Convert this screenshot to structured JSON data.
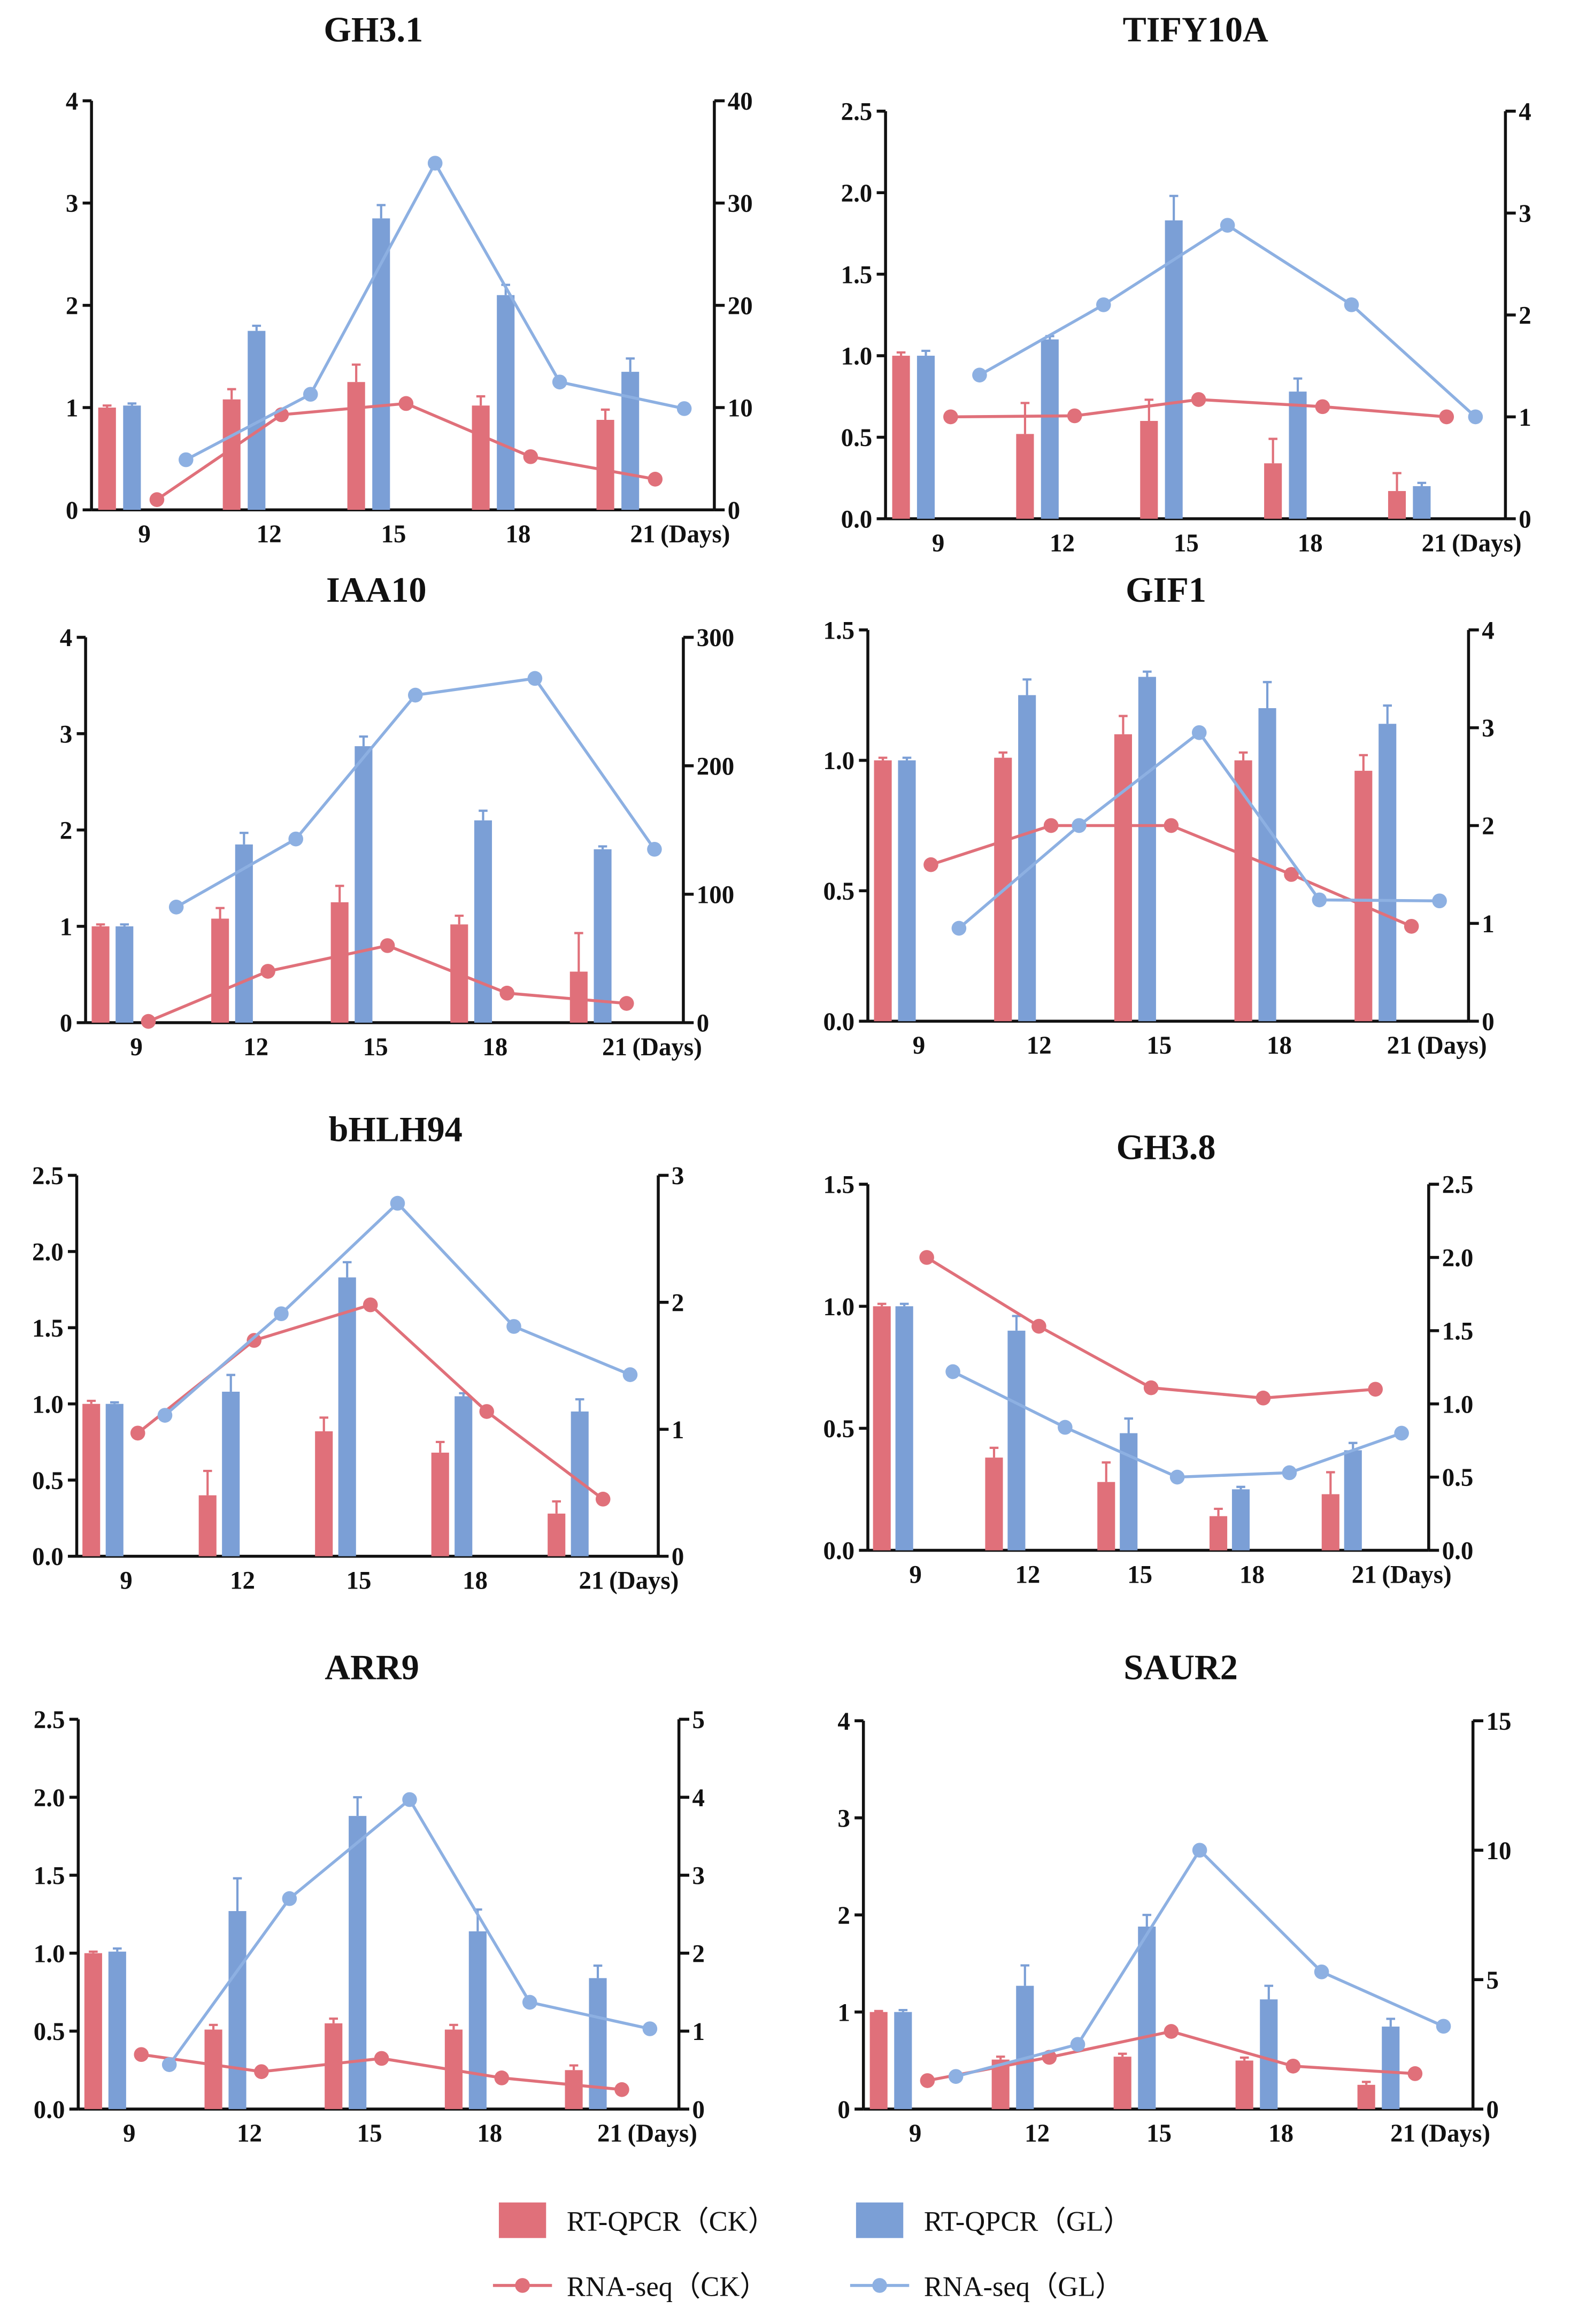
{
  "colors": {
    "ck": "#e0707a",
    "gl": "#7b9fd6",
    "gl_line": "#8db0e2",
    "axis": "#111111"
  },
  "legend": [
    {
      "label": "RT-QPCR（CK）",
      "kind": "bar",
      "series": "ck"
    },
    {
      "label": "RT-QPCR（GL）",
      "kind": "bar",
      "series": "gl"
    },
    {
      "label": "RNA-seq（CK）",
      "kind": "line",
      "series": "ck"
    },
    {
      "label": "RNA-seq（GL）",
      "kind": "line",
      "series": "gl"
    }
  ],
  "chart_data": [
    {
      "type": "bar+line",
      "title": "GH3.1",
      "categories": [
        "9",
        "12",
        "15",
        "18",
        "21"
      ],
      "xlabel": "(Days)",
      "ylim_left": [
        0,
        4
      ],
      "yticks_left": [
        "0",
        "1",
        "2",
        "3",
        "4"
      ],
      "ylim_right": [
        0,
        40
      ],
      "yticks_right": [
        "0",
        "10",
        "20",
        "30",
        "40"
      ],
      "series": [
        {
          "name": "RT-QPCR（CK）",
          "axis": "left",
          "values": [
            1.0,
            1.08,
            1.25,
            1.02,
            0.88
          ],
          "err": [
            0.02,
            0.1,
            0.17,
            0.09,
            0.1
          ]
        },
        {
          "name": "RT-QPCR（GL）",
          "axis": "left",
          "values": [
            1.02,
            1.75,
            2.85,
            2.1,
            1.35
          ],
          "err": [
            0.02,
            0.05,
            0.13,
            0.1,
            0.13
          ]
        },
        {
          "name": "RNA-seq（CK）",
          "axis": "right",
          "values": [
            1.0,
            9.3,
            10.4,
            5.2,
            3.0
          ]
        },
        {
          "name": "RNA-seq（GL）",
          "axis": "right",
          "values": [
            4.9,
            11.3,
            33.9,
            12.5,
            9.9
          ]
        }
      ]
    },
    {
      "type": "bar+line",
      "title": "TIFY10A",
      "categories": [
        "9",
        "12",
        "15",
        "18",
        "21"
      ],
      "xlabel": "(Days)",
      "ylim_left": [
        0,
        2.5
      ],
      "yticks_left": [
        "0.0",
        "0.5",
        "1.0",
        "1.5",
        "2.0",
        "2.5"
      ],
      "ylim_right": [
        0,
        4
      ],
      "yticks_right": [
        "0",
        "1",
        "2",
        "3",
        "4"
      ],
      "series": [
        {
          "name": "RT-QPCR（CK）",
          "axis": "left",
          "values": [
            1.0,
            0.52,
            0.6,
            0.34,
            0.17
          ],
          "err": [
            0.02,
            0.19,
            0.13,
            0.15,
            0.11
          ]
        },
        {
          "name": "RT-QPCR（GL）",
          "axis": "left",
          "values": [
            1.0,
            1.1,
            1.83,
            0.78,
            0.2
          ],
          "err": [
            0.03,
            0.02,
            0.15,
            0.08,
            0.02
          ]
        },
        {
          "name": "RNA-seq（CK）",
          "axis": "right",
          "values": [
            1.0,
            1.01,
            1.17,
            1.1,
            1.0
          ]
        },
        {
          "name": "RNA-seq（GL）",
          "axis": "right",
          "values": [
            1.41,
            2.1,
            2.88,
            2.1,
            1.0
          ]
        }
      ]
    },
    {
      "type": "bar+line",
      "title": "IAA10",
      "categories": [
        "9",
        "12",
        "15",
        "18",
        "21"
      ],
      "xlabel": "(Days)",
      "ylim_left": [
        0,
        4
      ],
      "yticks_left": [
        "0",
        "1",
        "2",
        "3",
        "4"
      ],
      "ylim_right": [
        0,
        300
      ],
      "yticks_right": [
        "0",
        "100",
        "200",
        "300"
      ],
      "series": [
        {
          "name": "RT-QPCR（CK）",
          "axis": "left",
          "values": [
            1.0,
            1.08,
            1.25,
            1.02,
            0.53
          ],
          "err": [
            0.02,
            0.11,
            0.17,
            0.09,
            0.4
          ]
        },
        {
          "name": "RT-QPCR（GL）",
          "axis": "left",
          "values": [
            1.0,
            1.85,
            2.87,
            2.1,
            1.8
          ],
          "err": [
            0.02,
            0.12,
            0.1,
            0.1,
            0.03
          ]
        },
        {
          "name": "RNA-seq（CK）",
          "axis": "right",
          "values": [
            1,
            40,
            60,
            23,
            15
          ]
        },
        {
          "name": "RNA-seq（GL）",
          "axis": "right",
          "values": [
            90,
            143,
            255,
            268,
            135
          ]
        }
      ]
    },
    {
      "type": "bar+line",
      "title": "GIF1",
      "categories": [
        "9",
        "12",
        "15",
        "18",
        "21"
      ],
      "xlabel": "(Days)",
      "ylim_left": [
        0,
        1.5
      ],
      "yticks_left": [
        "0.0",
        "0.5",
        "1.0",
        "1.5"
      ],
      "ylim_right": [
        0,
        4
      ],
      "yticks_right": [
        "0",
        "1",
        "2",
        "3",
        "4"
      ],
      "series": [
        {
          "name": "RT-QPCR（CK）",
          "axis": "left",
          "values": [
            1.0,
            1.01,
            1.1,
            1.0,
            0.96
          ],
          "err": [
            0.01,
            0.02,
            0.07,
            0.03,
            0.06
          ]
        },
        {
          "name": "RT-QPCR（GL）",
          "axis": "left",
          "values": [
            1.0,
            1.25,
            1.32,
            1.2,
            1.14
          ],
          "err": [
            0.01,
            0.06,
            0.02,
            0.1,
            0.07
          ]
        },
        {
          "name": "RNA-seq（CK）",
          "axis": "right",
          "values": [
            1.6,
            2.0,
            2.0,
            1.5,
            0.97
          ]
        },
        {
          "name": "RNA-seq（GL）",
          "axis": "right",
          "values": [
            0.95,
            2.0,
            2.95,
            1.24,
            1.23
          ]
        }
      ]
    },
    {
      "type": "bar+line",
      "title": "bHLH94",
      "categories": [
        "9",
        "12",
        "15",
        "18",
        "21"
      ],
      "xlabel": "(Days)",
      "ylim_left": [
        0,
        2.5
      ],
      "yticks_left": [
        "0.0",
        "0.5",
        "1.0",
        "1.5",
        "2.0",
        "2.5"
      ],
      "ylim_right": [
        0,
        3
      ],
      "yticks_right": [
        "0",
        "1",
        "2",
        "3"
      ],
      "series": [
        {
          "name": "RT-QPCR（CK）",
          "axis": "left",
          "values": [
            1.0,
            0.4,
            0.82,
            0.68,
            0.28
          ],
          "err": [
            0.02,
            0.16,
            0.09,
            0.07,
            0.08
          ]
        },
        {
          "name": "RT-QPCR（GL）",
          "axis": "left",
          "values": [
            1.0,
            1.08,
            1.83,
            1.05,
            0.95
          ],
          "err": [
            0.01,
            0.11,
            0.1,
            0.02,
            0.08
          ]
        },
        {
          "name": "RNA-seq（CK）",
          "axis": "right",
          "values": [
            0.97,
            1.7,
            1.98,
            1.14,
            0.45
          ]
        },
        {
          "name": "RNA-seq（GL）",
          "axis": "right",
          "values": [
            1.11,
            1.91,
            2.78,
            1.81,
            1.43
          ]
        }
      ]
    },
    {
      "type": "bar+line",
      "title": "GH3.8",
      "categories": [
        "9",
        "12",
        "15",
        "18",
        "21"
      ],
      "xlabel": "(Days)",
      "ylim_left": [
        0,
        1.5
      ],
      "yticks_left": [
        "0.0",
        "0.5",
        "1.0",
        "1.5"
      ],
      "ylim_right": [
        0,
        2.5
      ],
      "yticks_right": [
        "0.0",
        "0.5",
        "1.0",
        "1.5",
        "2.0",
        "2.5"
      ],
      "series": [
        {
          "name": "RT-QPCR（CK）",
          "axis": "left",
          "values": [
            1.0,
            0.38,
            0.28,
            0.14,
            0.23
          ],
          "err": [
            0.01,
            0.04,
            0.08,
            0.03,
            0.09
          ]
        },
        {
          "name": "RT-QPCR（GL）",
          "axis": "left",
          "values": [
            1.0,
            0.9,
            0.48,
            0.25,
            0.41
          ],
          "err": [
            0.01,
            0.06,
            0.06,
            0.01,
            0.03
          ]
        },
        {
          "name": "RNA-seq（CK）",
          "axis": "right",
          "values": [
            2.0,
            1.53,
            1.11,
            1.04,
            1.1
          ]
        },
        {
          "name": "RNA-seq（GL）",
          "axis": "right",
          "values": [
            1.22,
            0.84,
            0.5,
            0.53,
            0.8
          ]
        }
      ]
    },
    {
      "type": "bar+line",
      "title": "ARR9",
      "categories": [
        "9",
        "12",
        "15",
        "18",
        "21"
      ],
      "xlabel": "(Days)",
      "ylim_left": [
        0,
        2.5
      ],
      "yticks_left": [
        "0.0",
        "0.5",
        "1.0",
        "1.5",
        "2.0",
        "2.5"
      ],
      "ylim_right": [
        0,
        5
      ],
      "yticks_right": [
        "0",
        "1",
        "2",
        "3",
        "4",
        "5"
      ],
      "series": [
        {
          "name": "RT-QPCR（CK）",
          "axis": "left",
          "values": [
            1.0,
            0.51,
            0.55,
            0.51,
            0.25
          ],
          "err": [
            0.01,
            0.03,
            0.03,
            0.03,
            0.03
          ]
        },
        {
          "name": "RT-QPCR（GL）",
          "axis": "left",
          "values": [
            1.01,
            1.27,
            1.88,
            1.14,
            0.84
          ],
          "err": [
            0.02,
            0.21,
            0.12,
            0.14,
            0.08
          ]
        },
        {
          "name": "RNA-seq（CK）",
          "axis": "right",
          "values": [
            0.7,
            0.48,
            0.65,
            0.4,
            0.25
          ]
        },
        {
          "name": "RNA-seq（GL）",
          "axis": "right",
          "values": [
            0.57,
            2.7,
            3.97,
            1.37,
            1.03
          ]
        }
      ]
    },
    {
      "type": "bar+line",
      "title": "SAUR2",
      "categories": [
        "9",
        "12",
        "15",
        "18",
        "21"
      ],
      "xlabel": "(Days)",
      "ylim_left": [
        0,
        4
      ],
      "yticks_left": [
        "0",
        "1",
        "2",
        "3",
        "4"
      ],
      "ylim_right": [
        0,
        15
      ],
      "yticks_right": [
        "0",
        "5",
        "10",
        "15"
      ],
      "series": [
        {
          "name": "RT-QPCR（CK）",
          "axis": "left",
          "values": [
            1.0,
            0.51,
            0.54,
            0.5,
            0.25
          ],
          "err": [
            0.01,
            0.03,
            0.03,
            0.03,
            0.03
          ]
        },
        {
          "name": "RT-QPCR（GL）",
          "axis": "left",
          "values": [
            1.0,
            1.27,
            1.88,
            1.13,
            0.85
          ],
          "err": [
            0.02,
            0.21,
            0.12,
            0.14,
            0.08
          ]
        },
        {
          "name": "RNA-seq（CK）",
          "axis": "right",
          "values": [
            1.1,
            2.0,
            3.0,
            1.66,
            1.37
          ]
        },
        {
          "name": "RNA-seq（GL）",
          "axis": "right",
          "values": [
            1.26,
            2.5,
            10.0,
            5.3,
            3.2
          ]
        }
      ]
    }
  ]
}
